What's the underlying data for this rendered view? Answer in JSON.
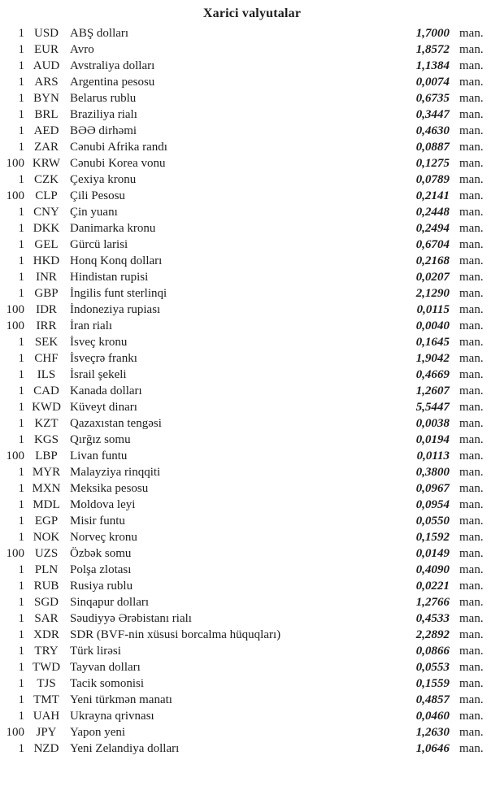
{
  "title": "Xarici valyutalar",
  "unit_label": "man.",
  "rows": [
    {
      "qty": "1",
      "code": "USD",
      "name": "ABŞ dolları",
      "rate": "1,7000"
    },
    {
      "qty": "1",
      "code": "EUR",
      "name": "Avro",
      "rate": "1,8572"
    },
    {
      "qty": "1",
      "code": "AUD",
      "name": "Avstraliya dolları",
      "rate": "1,1384"
    },
    {
      "qty": "1",
      "code": "ARS",
      "name": "Argentina pesosu",
      "rate": "0,0074"
    },
    {
      "qty": "1",
      "code": "BYN",
      "name": "Belarus rublu",
      "rate": "0,6735"
    },
    {
      "qty": "1",
      "code": "BRL",
      "name": "Braziliya rialı",
      "rate": "0,3447"
    },
    {
      "qty": "1",
      "code": "AED",
      "name": "BƏƏ dirhəmi",
      "rate": "0,4630"
    },
    {
      "qty": "1",
      "code": "ZAR",
      "name": "Cənubi Afrika randı",
      "rate": "0,0887"
    },
    {
      "qty": "100",
      "code": "KRW",
      "name": "Cənubi Korea vonu",
      "rate": "0,1275"
    },
    {
      "qty": "1",
      "code": "CZK",
      "name": "Çexiya kronu",
      "rate": "0,0789"
    },
    {
      "qty": "100",
      "code": "CLP",
      "name": "Çili Pesosu",
      "rate": "0,2141"
    },
    {
      "qty": "1",
      "code": "CNY",
      "name": "Çin yuanı",
      "rate": "0,2448"
    },
    {
      "qty": "1",
      "code": "DKK",
      "name": "Danimarka kronu",
      "rate": "0,2494"
    },
    {
      "qty": "1",
      "code": "GEL",
      "name": "Gürcü larisi",
      "rate": "0,6704"
    },
    {
      "qty": "1",
      "code": "HKD",
      "name": "Honq Konq dolları",
      "rate": "0,2168"
    },
    {
      "qty": "1",
      "code": "INR",
      "name": "Hindistan rupisi",
      "rate": "0,0207"
    },
    {
      "qty": "1",
      "code": "GBP",
      "name": "İngilis funt sterlinqi",
      "rate": "2,1290"
    },
    {
      "qty": "100",
      "code": "IDR",
      "name": "İndoneziya rupiası",
      "rate": "0,0115"
    },
    {
      "qty": "100",
      "code": "IRR",
      "name": "İran rialı",
      "rate": "0,0040"
    },
    {
      "qty": "1",
      "code": "SEK",
      "name": "İsveç kronu",
      "rate": "0,1645"
    },
    {
      "qty": "1",
      "code": "CHF",
      "name": "İsveçrə frankı",
      "rate": "1,9042"
    },
    {
      "qty": "1",
      "code": "ILS",
      "name": "İsrail şekeli",
      "rate": "0,4669"
    },
    {
      "qty": "1",
      "code": "CAD",
      "name": "Kanada dolları",
      "rate": "1,2607"
    },
    {
      "qty": "1",
      "code": "KWD",
      "name": "Küveyt dinarı",
      "rate": "5,5447"
    },
    {
      "qty": "1",
      "code": "KZT",
      "name": "Qazaxıstan tengəsi",
      "rate": "0,0038"
    },
    {
      "qty": "1",
      "code": "KGS",
      "name": "Qırğız somu",
      "rate": "0,0194"
    },
    {
      "qty": "100",
      "code": "LBP",
      "name": "Livan funtu",
      "rate": "0,0113"
    },
    {
      "qty": "1",
      "code": "MYR",
      "name": "Malayziya rinqqiti",
      "rate": "0,3800"
    },
    {
      "qty": "1",
      "code": "MXN",
      "name": "Meksika pesosu",
      "rate": "0,0967"
    },
    {
      "qty": "1",
      "code": "MDL",
      "name": "Moldova leyi",
      "rate": "0,0954"
    },
    {
      "qty": "1",
      "code": "EGP",
      "name": "Misir funtu",
      "rate": "0,0550"
    },
    {
      "qty": "1",
      "code": "NOK",
      "name": "Norveç kronu",
      "rate": "0,1592"
    },
    {
      "qty": "100",
      "code": "UZS",
      "name": "Özbək somu",
      "rate": "0,0149"
    },
    {
      "qty": "1",
      "code": "PLN",
      "name": "Polşa zlotası",
      "rate": "0,4090"
    },
    {
      "qty": "1",
      "code": "RUB",
      "name": "Rusiya rublu",
      "rate": "0,0221"
    },
    {
      "qty": "1",
      "code": "SGD",
      "name": "Sinqapur dolları",
      "rate": "1,2766"
    },
    {
      "qty": "1",
      "code": "SAR",
      "name": "Səudiyyə Ərəbistanı rialı",
      "rate": "0,4533"
    },
    {
      "qty": "1",
      "code": "XDR",
      "name": "SDR (BVF-nin xüsusi borcalma hüquqları)",
      "rate": "2,2892"
    },
    {
      "qty": "1",
      "code": "TRY",
      "name": "Türk lirəsi",
      "rate": "0,0866"
    },
    {
      "qty": "1",
      "code": "TWD",
      "name": "Tayvan dolları",
      "rate": "0,0553"
    },
    {
      "qty": "1",
      "code": "TJS",
      "name": "Tacik somonisi",
      "rate": "0,1559"
    },
    {
      "qty": "1",
      "code": "TMT",
      "name": "Yeni türkmən manatı",
      "rate": "0,4857"
    },
    {
      "qty": "1",
      "code": "UAH",
      "name": "Ukrayna qrivnası",
      "rate": "0,0460"
    },
    {
      "qty": "100",
      "code": "JPY",
      "name": "Yapon yeni",
      "rate": "1,2630"
    },
    {
      "qty": "1",
      "code": "NZD",
      "name": "Yeni Zelandiya dolları",
      "rate": "1,0646"
    }
  ]
}
